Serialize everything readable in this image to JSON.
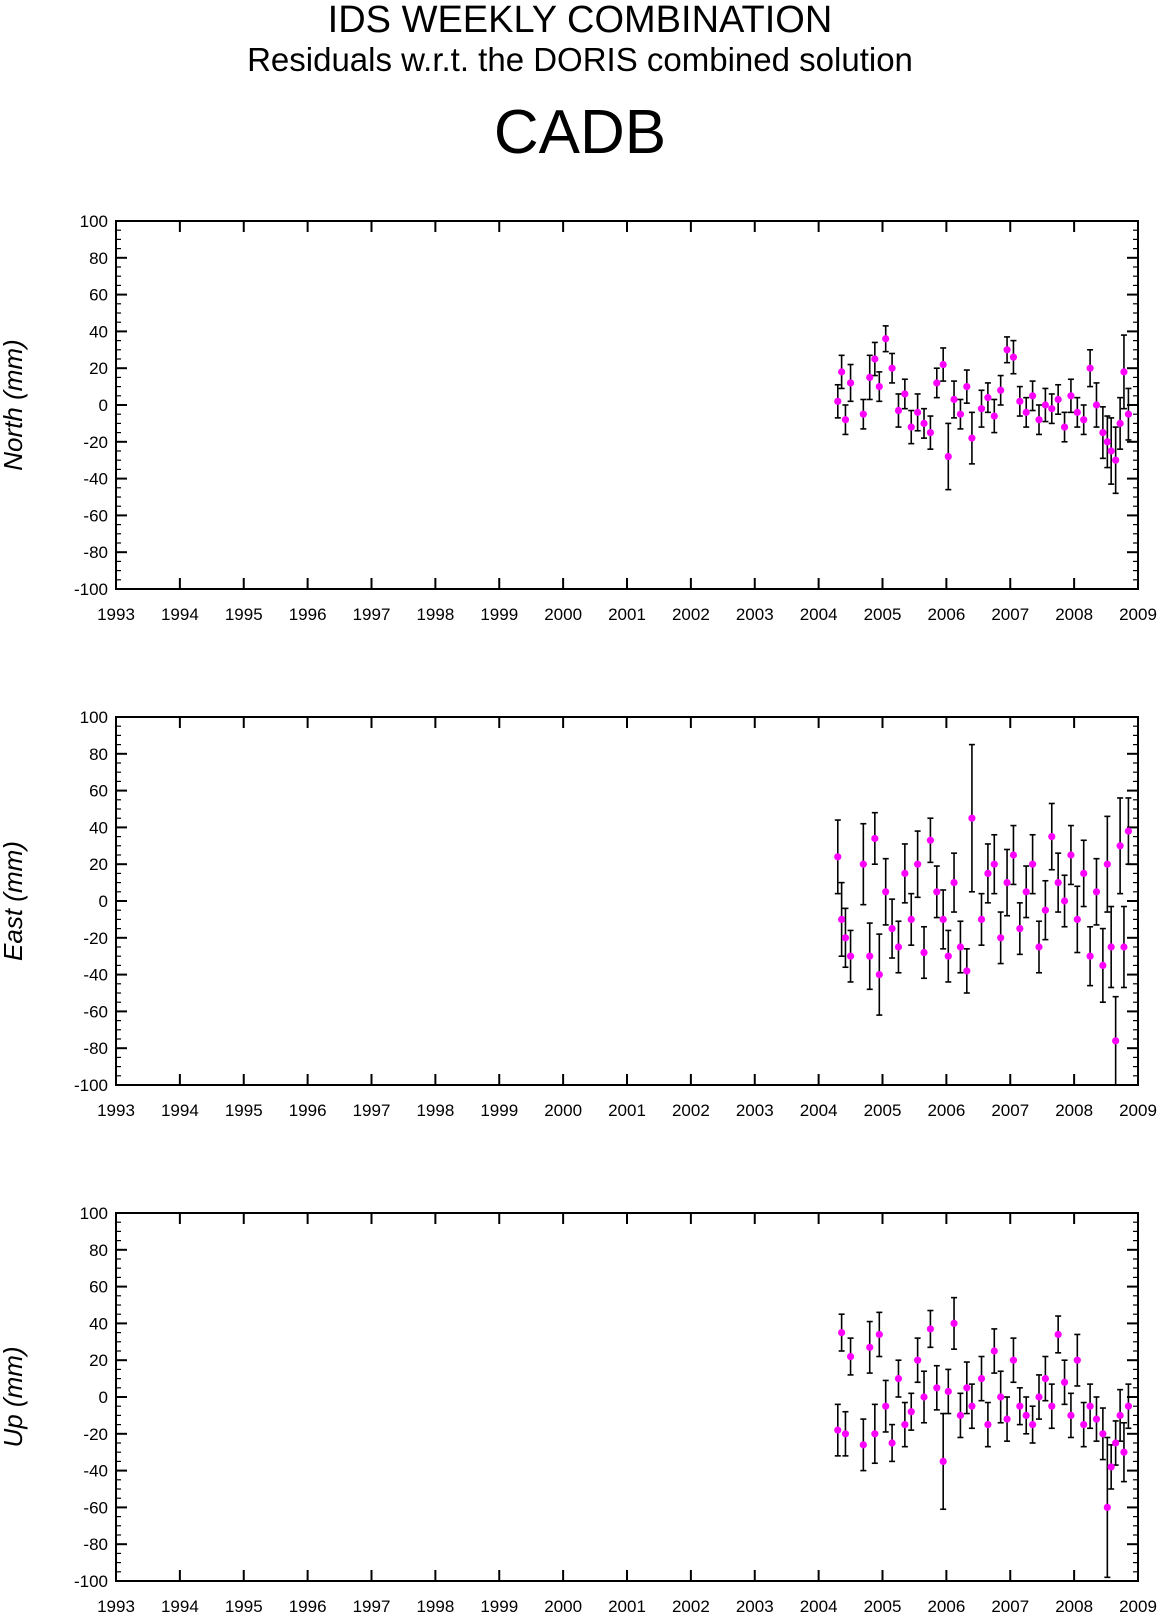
{
  "header": {
    "title": "IDS WEEKLY COMBINATION",
    "subtitle": "Residuals w.r.t. the DORIS combined solution",
    "station": "CADB"
  },
  "colors": {
    "point": "#ff00ff",
    "errorbar": "#000000",
    "axis": "#000000"
  },
  "chart_data": [
    {
      "type": "scatter",
      "ylabel": "North (mm)",
      "xlim": [
        1993,
        2009
      ],
      "ylim": [
        -100,
        100
      ],
      "xticks": [
        "1993",
        "1994",
        "1995",
        "1996",
        "1997",
        "1998",
        "1999",
        "2000",
        "2001",
        "2002",
        "2003",
        "2004",
        "2005",
        "2006",
        "2007",
        "2008",
        "2009"
      ],
      "yticks": [
        "100",
        "80",
        "60",
        "40",
        "20",
        "0",
        "-20",
        "-40",
        "-60",
        "-80",
        "-100"
      ],
      "series": [
        {
          "x": [
            2004.3,
            2004.36,
            2004.42,
            2004.5,
            2004.7,
            2004.8,
            2004.88,
            2004.95,
            2005.05,
            2005.15,
            2005.25,
            2005.35,
            2005.45,
            2005.55,
            2005.65,
            2005.75,
            2005.85,
            2005.95,
            2006.03,
            2006.12,
            2006.22,
            2006.32,
            2006.4,
            2006.55,
            2006.65,
            2006.75,
            2006.85,
            2006.95,
            2007.05,
            2007.15,
            2007.25,
            2007.35,
            2007.45,
            2007.55,
            2007.65,
            2007.75,
            2007.85,
            2007.95,
            2008.05,
            2008.15,
            2008.25,
            2008.35,
            2008.45,
            2008.52,
            2008.58,
            2008.65,
            2008.72,
            2008.78,
            2008.85
          ],
          "y": [
            2,
            18,
            -8,
            12,
            -5,
            15,
            25,
            10,
            36,
            20,
            -3,
            6,
            -12,
            -4,
            -10,
            -15,
            12,
            22,
            -28,
            3,
            -5,
            10,
            -18,
            -2,
            4,
            -6,
            8,
            30,
            26,
            2,
            -4,
            5,
            -8,
            0,
            -2,
            3,
            -12,
            5,
            -4,
            -8,
            20,
            0,
            -15,
            -20,
            -25,
            -30,
            -10,
            18,
            -5
          ],
          "err": [
            9,
            9,
            8,
            10,
            8,
            12,
            9,
            8,
            7,
            8,
            9,
            8,
            9,
            10,
            8,
            9,
            8,
            9,
            18,
            10,
            8,
            9,
            14,
            10,
            8,
            9,
            8,
            7,
            9,
            8,
            8,
            8,
            8,
            9,
            8,
            8,
            8,
            9,
            8,
            8,
            10,
            12,
            14,
            14,
            18,
            18,
            14,
            20,
            14
          ]
        }
      ]
    },
    {
      "type": "scatter",
      "ylabel": "East (mm)",
      "xlim": [
        1993,
        2009
      ],
      "ylim": [
        -100,
        100
      ],
      "xticks": [
        "1993",
        "1994",
        "1995",
        "1996",
        "1997",
        "1998",
        "1999",
        "2000",
        "2001",
        "2002",
        "2003",
        "2004",
        "2005",
        "2006",
        "2007",
        "2008",
        "2009"
      ],
      "yticks": [
        "100",
        "80",
        "60",
        "40",
        "20",
        "0",
        "-20",
        "-40",
        "-60",
        "-80",
        "-100"
      ],
      "series": [
        {
          "x": [
            2004.3,
            2004.36,
            2004.42,
            2004.5,
            2004.7,
            2004.8,
            2004.88,
            2004.95,
            2005.05,
            2005.15,
            2005.25,
            2005.35,
            2005.45,
            2005.55,
            2005.65,
            2005.75,
            2005.85,
            2005.95,
            2006.03,
            2006.12,
            2006.22,
            2006.32,
            2006.4,
            2006.55,
            2006.65,
            2006.75,
            2006.85,
            2006.95,
            2007.05,
            2007.15,
            2007.25,
            2007.35,
            2007.45,
            2007.55,
            2007.65,
            2007.75,
            2007.85,
            2007.95,
            2008.05,
            2008.15,
            2008.25,
            2008.35,
            2008.45,
            2008.52,
            2008.58,
            2008.65,
            2008.72,
            2008.78,
            2008.85
          ],
          "y": [
            24,
            -10,
            -20,
            -30,
            20,
            -30,
            34,
            -40,
            5,
            -15,
            -25,
            15,
            -10,
            20,
            -28,
            33,
            5,
            -10,
            -30,
            10,
            -25,
            -38,
            45,
            -10,
            15,
            20,
            -20,
            10,
            25,
            -15,
            5,
            20,
            -25,
            -5,
            35,
            10,
            0,
            25,
            -10,
            15,
            -30,
            5,
            -35,
            20,
            -25,
            -76,
            30,
            -25,
            38
          ],
          "err": [
            20,
            20,
            16,
            14,
            22,
            18,
            14,
            22,
            18,
            16,
            14,
            16,
            14,
            18,
            14,
            12,
            14,
            16,
            14,
            16,
            14,
            12,
            40,
            14,
            16,
            16,
            14,
            18,
            16,
            14,
            14,
            16,
            14,
            16,
            18,
            16,
            14,
            16,
            18,
            18,
            16,
            18,
            20,
            26,
            22,
            24,
            26,
            22,
            18
          ]
        }
      ]
    },
    {
      "type": "scatter",
      "ylabel": "Up (mm)",
      "xlim": [
        1993,
        2009
      ],
      "ylim": [
        -100,
        100
      ],
      "xticks": [
        "1993",
        "1994",
        "1995",
        "1996",
        "1997",
        "1998",
        "1999",
        "2000",
        "2001",
        "2002",
        "2003",
        "2004",
        "2005",
        "2006",
        "2007",
        "2008",
        "2009"
      ],
      "yticks": [
        "100",
        "80",
        "60",
        "40",
        "20",
        "0",
        "-20",
        "-40",
        "-60",
        "-80",
        "-100"
      ],
      "series": [
        {
          "x": [
            2004.3,
            2004.36,
            2004.42,
            2004.5,
            2004.7,
            2004.8,
            2004.88,
            2004.95,
            2005.05,
            2005.15,
            2005.25,
            2005.35,
            2005.45,
            2005.55,
            2005.65,
            2005.75,
            2005.85,
            2005.95,
            2006.03,
            2006.12,
            2006.22,
            2006.32,
            2006.4,
            2006.55,
            2006.65,
            2006.75,
            2006.85,
            2006.95,
            2007.05,
            2007.15,
            2007.25,
            2007.35,
            2007.45,
            2007.55,
            2007.65,
            2007.75,
            2007.85,
            2007.95,
            2008.05,
            2008.15,
            2008.25,
            2008.35,
            2008.45,
            2008.52,
            2008.58,
            2008.65,
            2008.72,
            2008.78,
            2008.85
          ],
          "y": [
            -18,
            35,
            -20,
            22,
            -26,
            27,
            -20,
            34,
            -5,
            -25,
            10,
            -15,
            -8,
            20,
            0,
            37,
            5,
            -35,
            3,
            40,
            -10,
            5,
            -5,
            10,
            -15,
            25,
            0,
            -12,
            20,
            -5,
            -10,
            -15,
            0,
            10,
            -5,
            34,
            8,
            -10,
            20,
            -15,
            -5,
            -12,
            -20,
            -60,
            -38,
            -25,
            -10,
            -30,
            -5
          ],
          "err": [
            14,
            10,
            12,
            10,
            14,
            14,
            16,
            12,
            14,
            10,
            10,
            12,
            10,
            12,
            14,
            10,
            12,
            26,
            12,
            14,
            12,
            14,
            12,
            12,
            12,
            12,
            14,
            12,
            12,
            10,
            10,
            10,
            12,
            12,
            12,
            10,
            12,
            12,
            14,
            12,
            12,
            12,
            14,
            38,
            12,
            12,
            14,
            16,
            12
          ]
        }
      ]
    }
  ]
}
